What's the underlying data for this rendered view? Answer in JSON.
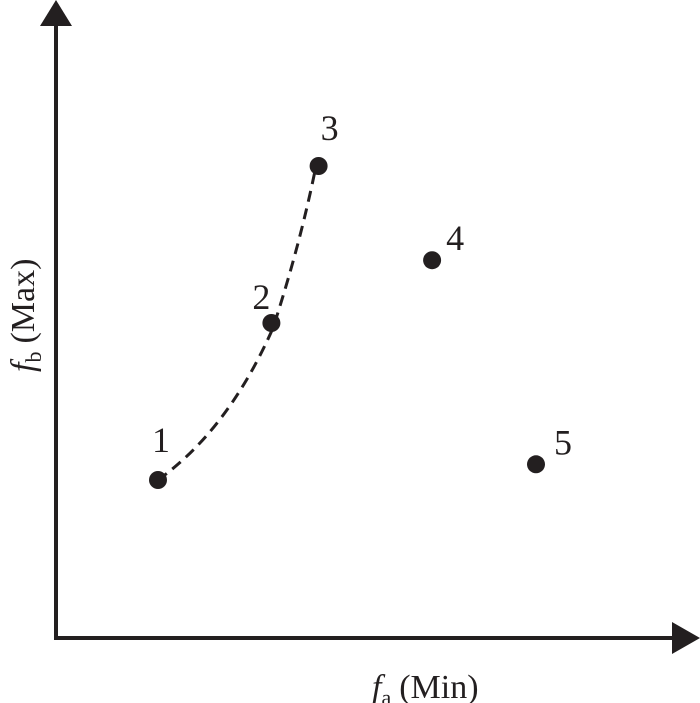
{
  "axes": {
    "x": {
      "symbol": "f",
      "subscript": "a",
      "qualifier": "(Min)"
    },
    "y": {
      "symbol": "f",
      "subscript": "b",
      "qualifier": "(Max)"
    }
  },
  "points": [
    {
      "label": "1",
      "fa": 1.0,
      "fb": 1.0
    },
    {
      "label": "2",
      "fa": 2.2,
      "fb": 2.0
    },
    {
      "label": "3",
      "fa": 2.7,
      "fb": 3.0
    },
    {
      "label": "4",
      "fa": 3.9,
      "fb": 2.4
    },
    {
      "label": "5",
      "fa": 5.0,
      "fb": 1.1
    }
  ],
  "front": {
    "style": "dashed",
    "connects": [
      "1",
      "2",
      "3"
    ]
  },
  "colors": {
    "ink": "#231f20",
    "background": "#ffffff"
  }
}
